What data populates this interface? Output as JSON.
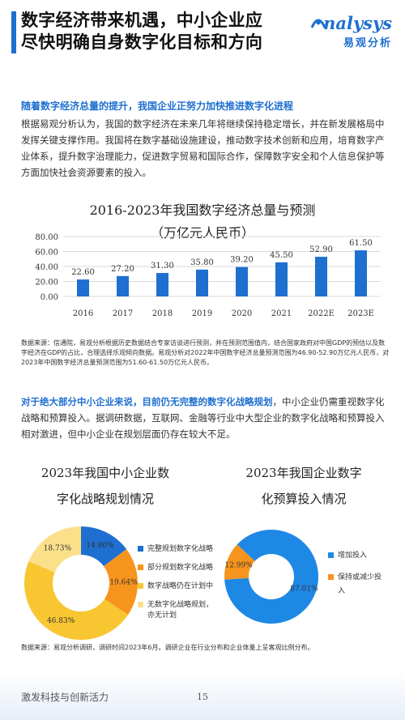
{
  "header": {
    "title_line1": "数字经济带来机遇，中小企业应",
    "title_line2": "尽快明确自身数字化目标和方向",
    "logo_text": "nalysys",
    "logo_cn": "易观分析"
  },
  "section1": {
    "heading": "随着数字经济总量的提升，我国企业正努力加快推进数字化进程",
    "paragraph": "根据易观分析认为，我国的数字经济在未来几年将继续保持稳定增长，并在新发展格局中发挥关键支撑作用。我国将在数字基础设施建设，推动数字技术创新和应用，培育数字产业体系，提升数字治理能力，促进数字贸易和国际合作，保障数字安全和个人信息保护等方面加快社会资源要素的投入。"
  },
  "chart1": {
    "title_line1": "2016-2023年我国数字经济总量与预测",
    "title_line2": "（万亿元人民币）",
    "source": "数据来源：信通院，易观分析根据历史数据结合专家访谈进行预测，并在预测范围值内，结合国家政府对中国GDP的预估以及数字经济在GDP的占比，合理选择乐观倾向数据。易观分析对2022年中国数字经济总量预测范围为46.90-52.90万亿元人民币，对2023年中国数字经济总量预测范围为51.60-61.50万亿元人民币。"
  },
  "chart_data": [
    {
      "type": "bar",
      "title": "2016-2023年我国数字经济总量与预测",
      "subtitle": "（万亿元人民币）",
      "categories": [
        "2016",
        "2017",
        "2018",
        "2019",
        "2020",
        "2021",
        "2022E",
        "2023E"
      ],
      "values": [
        22.6,
        27.2,
        31.3,
        35.8,
        39.2,
        45.5,
        52.9,
        61.5
      ],
      "value_labels": [
        "22.60",
        "27.20",
        "31.30",
        "35.80",
        "39.20",
        "45.50",
        "52.90",
        "61.50"
      ],
      "yticks": [
        "0.00",
        "20.00",
        "40.00",
        "60.00",
        "80.00"
      ],
      "ylim": [
        0,
        80
      ],
      "grid": true,
      "color": "#1e6fd0"
    },
    {
      "type": "pie",
      "title": "2023年我国中小企业数字化战略规划情况",
      "labels": [
        "完整规划数字化战略",
        "部分规划数字化战略",
        "数字战略仍在计划中",
        "无数字化战略规划，亦无计划"
      ],
      "values": [
        14.8,
        19.64,
        46.83,
        18.73
      ],
      "value_labels": [
        "14.80%",
        "19.64%",
        "46.83%",
        "18.73%"
      ],
      "colors": [
        "#1e6fd0",
        "#f7941d",
        "#f7c631",
        "#fbe08a"
      ],
      "legend": "right"
    },
    {
      "type": "pie",
      "title": "2023年我国企业数字化预算投入情况",
      "labels": [
        "增加投入",
        "保持或减少投入"
      ],
      "values": [
        87.01,
        12.99
      ],
      "value_labels": [
        "87.01%",
        "12.99%"
      ],
      "colors": [
        "#1e88e5",
        "#f7941d"
      ],
      "legend": "right"
    }
  ],
  "section2": {
    "highlight": "对于绝大部分中小企业来说，目前仍无完整的数字化战略规划",
    "rest": "，中小企业仍需重视数字化战略和预算投入。据调研数据，互联网、金融等行业中大型企业的数字化战略和预算投入相对激进，但中小企业在规划层面仍存在较大不足。"
  },
  "donut1": {
    "title_line1": "2023年我国中小企业数",
    "title_line2": "字化战略规划情况",
    "legend": [
      "完整规划数字化战略",
      "部分规划数字化战略",
      "数字战略仍在计划中",
      "无数字化战略规划，",
      "亦无计划"
    ]
  },
  "donut2": {
    "title_line1": "2023年我国企业数字",
    "title_line2": "化预算投入情况",
    "legend": [
      "增加投入",
      "保持或减少投",
      "入"
    ]
  },
  "source2": "数据来源：易观分析调研，调研时间2023年6月。调研企业在行业分布和企业体量上呈客观比例分布。",
  "footer": {
    "slogan": "激发科技与创新活力",
    "page": "15"
  }
}
